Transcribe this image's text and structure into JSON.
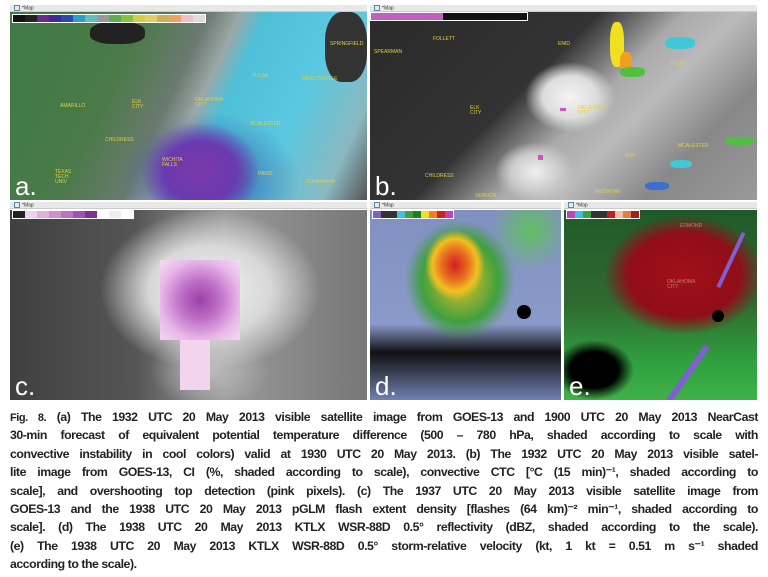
{
  "figure": {
    "tab_title": "*Map",
    "panels": {
      "a": {
        "label": "a.",
        "cities": [
          "SPRINGFIELD",
          "TULSA",
          "FAYETTEVILLE",
          "AMARILLO",
          "ELK CITY",
          "OKLAHOMA CITY",
          "MCALESTER",
          "CHILDRESS",
          "WICHITA FALLS",
          "PARIS",
          "TEXARKANA",
          "TEXAS TECH UNIV"
        ]
      },
      "b": {
        "label": "b.",
        "cities": [
          "FOLLETT",
          "ENID",
          "SPEARMAN",
          "TULSA",
          "ELK CITY",
          "OKLAHOMA CITY",
          "MCALESTER",
          "ADA",
          "CHILDRESS",
          "VERNON",
          "ARDMORE"
        ]
      },
      "c": {
        "label": "c."
      },
      "d": {
        "label": "d."
      },
      "e": {
        "label": "e.",
        "cities": [
          "EDMOND",
          "OKLAHOMA CITY"
        ]
      }
    }
  },
  "caption": {
    "fig_label": "Fig. 8.",
    "lines": [
      " (a) The 1932 UTC 20 May 2013 visible satellite image from GOES-13 and 1900 UTC 20 May 2013 NearCast",
      "30-min forecast of equivalent potential temperature difference (500 – 780 hPa, shaded according to scale with",
      "convective instability in cool colors) valid at 1930 UTC 20 May 2013. (b) The 1932 UTC 20 May 2013 visible satel-",
      "lite image from GOES-13, CI (%, shaded according to scale), convective CTC [°C (15 min)⁻¹, shaded according to",
      "scale], and overshooting top detection (pink pixels). (c) The 1937 UTC 20 May 2013 visible satellite image from",
      "GOES-13 and the 1938 UTC 20 May 2013 pGLM flash extent density [flashes (64 km)⁻² min⁻¹, shaded according to",
      "scale]. (d) The 1938 UTC 20 May 2013 KTLX WSR-88D 0.5° reflectivity (dBZ, shaded according to the scale).",
      "(e) The 1938 UTC 20 May 2013 KTLX WSR-88D 0.5° storm-relative velocity (kt, 1 kt = 0.51 m s⁻¹ shaded",
      "according to the scale)."
    ]
  }
}
